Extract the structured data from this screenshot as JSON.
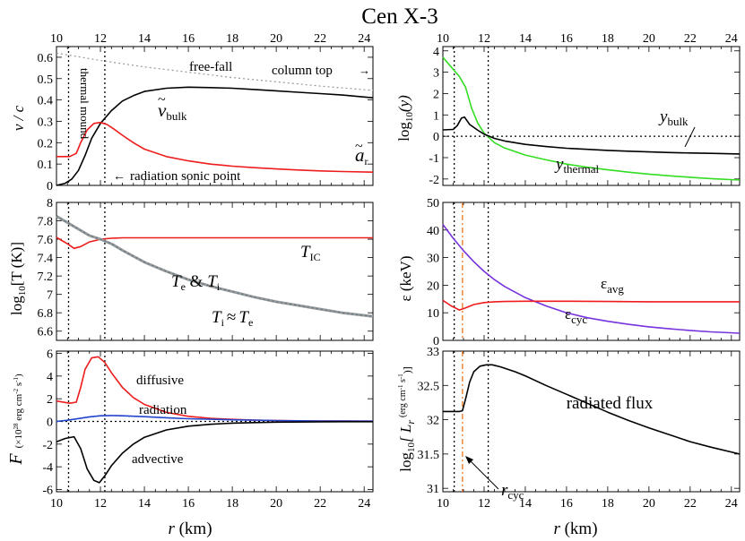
{
  "figure_title": "Cen X-3",
  "colors": {
    "black": "#000000",
    "red": "#ee1c1c",
    "green": "#33dd22",
    "blue": "#2244cc",
    "purple": "#7733dd",
    "orange": "#ee7722",
    "gray": "#999999",
    "teal": "#557788"
  },
  "chart_data": [
    {
      "id": "velocity",
      "type": "line",
      "ylabel": "v / c",
      "top_axis_ticks": [
        "10",
        "12",
        "14",
        "16",
        "18",
        "20",
        "22",
        "24"
      ],
      "xlim": [
        10,
        24.4
      ],
      "ylim": [
        0,
        0.65
      ],
      "yticks": [
        "0",
        "0.1",
        "0.2",
        "0.3",
        "0.4",
        "0.5",
        "0.6"
      ],
      "vlines": [
        10.55,
        12.2
      ],
      "series": [
        {
          "name": "free-fall",
          "color": "gray",
          "dash": "dot",
          "x": [
            10,
            12,
            14,
            16,
            18,
            20,
            22,
            24.4
          ],
          "y": [
            0.62,
            0.585,
            0.555,
            0.53,
            0.505,
            0.485,
            0.465,
            0.445
          ]
        },
        {
          "name": "v_bulk",
          "color": "black",
          "x": [
            10,
            10.4,
            10.7,
            11,
            11.3,
            11.6,
            12,
            12.5,
            13,
            13.5,
            14,
            15,
            16,
            17,
            18,
            19,
            20,
            21,
            22,
            23,
            24.4
          ],
          "y": [
            0.0,
            0.01,
            0.03,
            0.07,
            0.14,
            0.22,
            0.29,
            0.35,
            0.395,
            0.42,
            0.44,
            0.455,
            0.46,
            0.458,
            0.455,
            0.449,
            0.443,
            0.436,
            0.43,
            0.423,
            0.41
          ]
        },
        {
          "name": "a_r",
          "color": "red",
          "x": [
            10,
            10.6,
            10.9,
            11.1,
            11.4,
            11.7,
            12,
            12.3,
            12.6,
            13,
            13.5,
            14,
            15,
            16,
            17,
            18,
            19,
            20,
            21,
            22,
            23,
            24.4
          ],
          "y": [
            0.135,
            0.135,
            0.15,
            0.2,
            0.26,
            0.29,
            0.295,
            0.285,
            0.265,
            0.235,
            0.2,
            0.17,
            0.135,
            0.115,
            0.1,
            0.09,
            0.083,
            0.077,
            0.072,
            0.068,
            0.065,
            0.062
          ]
        }
      ],
      "labels": {
        "free_fall": "free-fall",
        "column_top": "column top",
        "thermal_mound": "thermal mound",
        "v_bulk_symbol": "v",
        "v_bulk_sub": "bulk",
        "a_r_symbol": "a",
        "a_r_sub": "r",
        "sonic_point": "radiation sonic point"
      }
    },
    {
      "id": "comptonization",
      "type": "line",
      "ylabel_prefix": "log",
      "ylabel_sub": "10",
      "ylabel_arg": "(y)",
      "top_axis_ticks": [
        "10",
        "12",
        "14",
        "16",
        "18",
        "20",
        "22",
        "24"
      ],
      "xlim": [
        10,
        24.4
      ],
      "ylim": [
        -2.3,
        4.2
      ],
      "yticks": [
        "-2",
        "-1",
        "0",
        "1",
        "2",
        "3",
        "4"
      ],
      "vlines": [
        10.55,
        12.2
      ],
      "hline": 0,
      "series": [
        {
          "name": "y_thermal",
          "color": "green",
          "x": [
            10,
            10.4,
            10.8,
            11.1,
            11.4,
            11.7,
            12,
            12.5,
            13,
            14,
            15,
            16,
            17,
            18,
            19,
            20,
            21,
            22,
            23,
            24.4
          ],
          "y": [
            3.7,
            3.25,
            2.8,
            2.3,
            1.3,
            0.6,
            0.15,
            -0.3,
            -0.55,
            -0.88,
            -1.1,
            -1.3,
            -1.45,
            -1.57,
            -1.68,
            -1.77,
            -1.85,
            -1.92,
            -1.98,
            -2.05
          ]
        },
        {
          "name": "y_bulk",
          "color": "black",
          "x": [
            10,
            10.5,
            10.7,
            10.9,
            11.05,
            11.3,
            11.7,
            12,
            12.5,
            13,
            14,
            15,
            16,
            17,
            18,
            19,
            20,
            21,
            22,
            23,
            24.4
          ],
          "y": [
            0.3,
            0.32,
            0.5,
            0.85,
            0.9,
            0.55,
            0.28,
            0.1,
            -0.1,
            -0.22,
            -0.38,
            -0.48,
            -0.56,
            -0.61,
            -0.66,
            -0.7,
            -0.73,
            -0.76,
            -0.78,
            -0.8,
            -0.83
          ]
        }
      ],
      "labels": {
        "y_bulk_symbol": "y",
        "y_bulk_sub": "bulk",
        "y_thermal_symbol": "y",
        "y_thermal_sub": "thermal"
      }
    },
    {
      "id": "temperature",
      "type": "line",
      "ylabel_prefix": "log",
      "ylabel_sub": "10",
      "ylabel_arg": "[T (K)]",
      "xlim": [
        10,
        24.4
      ],
      "ylim": [
        6.5,
        8.0
      ],
      "yticks": [
        "6.6",
        "6.8",
        "7",
        "7.2",
        "7.4",
        "7.6",
        "7.8",
        "8"
      ],
      "vlines": [
        10.55,
        12.2
      ],
      "series": [
        {
          "name": "T_IC",
          "color": "red",
          "x": [
            10,
            10.5,
            10.8,
            11.1,
            11.5,
            12,
            12.5,
            13,
            14,
            16,
            18,
            20,
            22,
            24.4
          ],
          "y": [
            7.62,
            7.55,
            7.5,
            7.52,
            7.57,
            7.6,
            7.61,
            7.615,
            7.615,
            7.615,
            7.615,
            7.615,
            7.615,
            7.615
          ]
        },
        {
          "name": "T_e",
          "color": "gray",
          "width": 3,
          "x": [
            10,
            10.5,
            11,
            11.5,
            12,
            12.5,
            13,
            14,
            15,
            16,
            17,
            18,
            19,
            20,
            21,
            22,
            23,
            24.4
          ],
          "y": [
            7.85,
            7.78,
            7.71,
            7.64,
            7.6,
            7.55,
            7.48,
            7.35,
            7.25,
            7.16,
            7.09,
            7.03,
            6.97,
            6.92,
            6.88,
            6.84,
            6.8,
            6.76
          ]
        },
        {
          "name": "T_i",
          "color": "teal",
          "dash": "dot",
          "x": [
            10,
            10.5,
            11,
            11.5,
            12,
            12.5,
            13,
            14,
            15,
            16,
            17,
            18,
            19,
            20,
            21,
            22,
            23,
            24.4
          ],
          "y": [
            7.85,
            7.78,
            7.71,
            7.64,
            7.6,
            7.55,
            7.48,
            7.35,
            7.25,
            7.16,
            7.09,
            7.03,
            6.97,
            6.92,
            6.88,
            6.84,
            6.8,
            6.76
          ]
        }
      ],
      "labels": {
        "t_ic_symbol": "T",
        "t_ic_sub": "IC",
        "te_ti_a": "T",
        "te_ti_a_sub": "e",
        "te_ti_amp": " & ",
        "te_ti_b": "T",
        "te_ti_b_sub": "i",
        "ti_approx_a": "T",
        "ti_approx_a_sub": "i",
        "ti_approx_sym": "≈",
        "ti_approx_b": "T",
        "ti_approx_b_sub": "e"
      }
    },
    {
      "id": "energy",
      "type": "line",
      "ylabel": "ε (keV)",
      "xlim": [
        10,
        24.4
      ],
      "ylim": [
        0,
        50
      ],
      "yticks": [
        "0",
        "10",
        "20",
        "30",
        "40",
        "50"
      ],
      "vlines": [
        10.55,
        12.2
      ],
      "orange_line": 10.95,
      "series": [
        {
          "name": "eps_cyc",
          "color": "purple",
          "x": [
            10,
            10.5,
            11,
            11.5,
            12,
            12.5,
            13,
            14,
            15,
            16,
            17,
            18,
            19,
            20,
            21,
            22,
            23,
            24.4
          ],
          "y": [
            42,
            37,
            32.5,
            28.5,
            25,
            22,
            19.5,
            15.5,
            12.5,
            10,
            8.2,
            6.9,
            5.8,
            4.9,
            4.2,
            3.6,
            3.1,
            2.6
          ]
        },
        {
          "name": "eps_avg",
          "color": "red",
          "x": [
            10,
            10.4,
            10.8,
            11.1,
            11.5,
            12,
            12.5,
            13,
            14,
            16,
            18,
            20,
            22,
            24.4
          ],
          "y": [
            14.5,
            12.5,
            11,
            11.8,
            13,
            13.7,
            14,
            14.1,
            14.2,
            14.2,
            14.1,
            14,
            14,
            14
          ]
        }
      ],
      "labels": {
        "eps_avg_symbol": "ε",
        "eps_avg_sub": "avg",
        "eps_cyc_symbol": "ε",
        "eps_cyc_sub": "cyc"
      }
    },
    {
      "id": "flux",
      "type": "line",
      "ylabel_main": "F",
      "ylabel_unit": "(×10",
      "ylabel_exp": "28",
      "ylabel_unit2": " erg cm",
      "ylabel_exp2": "-2",
      "ylabel_unit3": " s",
      "ylabel_exp3": "-1",
      "ylabel_unit4": ")",
      "xlabel": "r (km)",
      "xticks": [
        "10",
        "12",
        "14",
        "16",
        "18",
        "20",
        "22",
        "24"
      ],
      "xlim": [
        10,
        24.4
      ],
      "ylim": [
        -6.2,
        6.2
      ],
      "yticks": [
        "-6",
        "-4",
        "-2",
        "0",
        "2",
        "4",
        "6"
      ],
      "vlines": [
        10.55,
        12.2
      ],
      "hline": 0,
      "series": [
        {
          "name": "diffusive",
          "color": "red",
          "x": [
            10,
            10.6,
            10.9,
            11.1,
            11.3,
            11.6,
            11.9,
            12.2,
            12.5,
            13,
            13.5,
            14,
            15,
            16,
            17,
            18,
            19,
            20,
            22,
            24.4
          ],
          "y": [
            1.8,
            1.6,
            1.7,
            3.0,
            4.6,
            5.6,
            5.7,
            5.2,
            4.3,
            3.0,
            2.1,
            1.5,
            0.8,
            0.45,
            0.28,
            0.18,
            0.12,
            0.08,
            0.04,
            0.02
          ]
        },
        {
          "name": "radiation",
          "color": "blue",
          "x": [
            10,
            10.5,
            11,
            11.5,
            12,
            12.5,
            13,
            14,
            15,
            16,
            18,
            20,
            22,
            24.4
          ],
          "y": [
            0.0,
            0.1,
            0.25,
            0.4,
            0.5,
            0.52,
            0.5,
            0.42,
            0.32,
            0.24,
            0.14,
            0.08,
            0.04,
            0.02
          ]
        },
        {
          "name": "advective",
          "color": "black",
          "x": [
            10,
            10.4,
            10.8,
            11.1,
            11.4,
            11.7,
            11.95,
            12.2,
            12.5,
            13,
            13.5,
            14,
            15,
            16,
            17,
            18,
            19,
            20,
            22,
            24.4
          ],
          "y": [
            -1.8,
            -1.5,
            -1.35,
            -2.4,
            -4.2,
            -5.2,
            -5.4,
            -4.8,
            -3.9,
            -2.8,
            -2.0,
            -1.4,
            -0.75,
            -0.42,
            -0.25,
            -0.15,
            -0.1,
            -0.06,
            -0.03,
            -0.02
          ]
        }
      ],
      "labels": {
        "diffusive": "diffusive",
        "radiation": "radiation",
        "advective": "advective"
      }
    },
    {
      "id": "luminosity",
      "type": "line",
      "ylabel_prefix": "log",
      "ylabel_sub": "10",
      "ylabel_main": "[ L",
      "ylabel_r": "r",
      "ylabel_unit": "(erg cm",
      "ylabel_exp": "-1",
      "ylabel_unit2": " s",
      "ylabel_exp2": "-1",
      "ylabel_unit3": ")]",
      "xlabel": "r (km)",
      "xticks": [
        "10",
        "12",
        "14",
        "16",
        "18",
        "20",
        "22",
        "24"
      ],
      "xlim": [
        10,
        24.4
      ],
      "ylim": [
        30.95,
        33.0
      ],
      "yticks": [
        "31",
        "31.5",
        "32",
        "32.5",
        "33"
      ],
      "vlines": [
        10.55,
        12.2
      ],
      "orange_line": 10.95,
      "series": [
        {
          "name": "radiated flux",
          "color": "black",
          "x": [
            10,
            10.5,
            10.8,
            10.95,
            11.1,
            11.3,
            11.5,
            11.8,
            12.1,
            12.4,
            12.8,
            13.5,
            14,
            15,
            16,
            17,
            18,
            19,
            20,
            21,
            22,
            23,
            24.4
          ],
          "y": [
            32.12,
            32.12,
            32.12,
            32.13,
            32.3,
            32.55,
            32.7,
            32.78,
            32.8,
            32.8,
            32.77,
            32.7,
            32.64,
            32.5,
            32.37,
            32.24,
            32.11,
            31.99,
            31.88,
            31.78,
            31.68,
            31.6,
            31.5
          ]
        }
      ],
      "labels": {
        "radiated_flux": "radiated flux",
        "r_cyc_symbol": "r",
        "r_cyc_sub": "cyc"
      }
    }
  ]
}
